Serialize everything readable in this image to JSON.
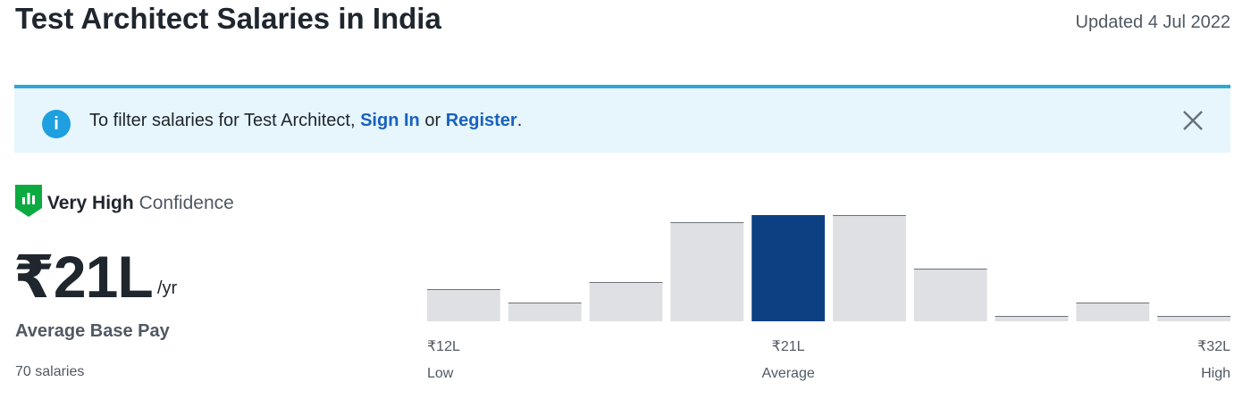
{
  "header": {
    "title": "Test Architect Salaries in India",
    "updated": "Updated 4 Jul 2022"
  },
  "banner": {
    "text": "To filter salaries for Test Architect,",
    "sign_in": "Sign In",
    "or": "or",
    "register": "Register",
    "end": "."
  },
  "summary": {
    "confidence_level": "Very High",
    "confidence": "Confidence",
    "pay": "₹21L",
    "period": "/yr",
    "pay_label": "Average Base Pay",
    "count": "70 salaries"
  },
  "chart_data": {
    "type": "bar",
    "categories": [
      null,
      null,
      null,
      null,
      null,
      null,
      null,
      null,
      null,
      null
    ],
    "values": [
      36,
      21,
      44,
      111,
      119,
      119,
      59,
      6,
      21,
      6
    ],
    "colors": [
      "#dfe0e4",
      "#dfe0e4",
      "#dfe0e4",
      "#dfe0e4",
      "#0d3f83",
      "#dfe0e4",
      "#dfe0e4",
      "#dfe0e4",
      "#dfe0e4",
      "#dfe0e4"
    ],
    "low": {
      "amount": "₹12L",
      "label": "Low"
    },
    "average": {
      "amount": "₹21L",
      "label": "Average"
    },
    "high": {
      "amount": "₹32L",
      "label": "High"
    }
  }
}
